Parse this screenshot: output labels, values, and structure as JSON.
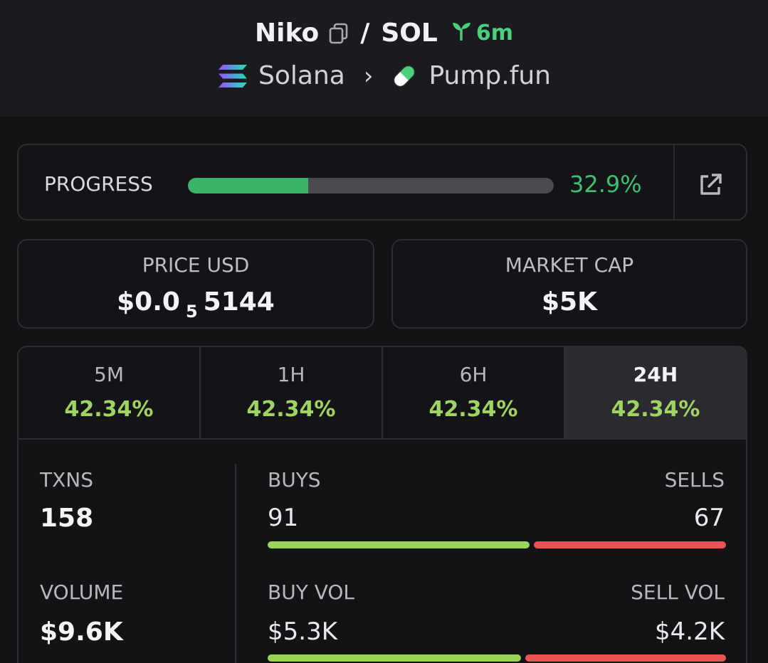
{
  "header": {
    "token_name": "Niko",
    "separator": "/",
    "quote": "SOL",
    "age": "6m",
    "chain": "Solana",
    "chevron": "›",
    "launchpad": "Pump.fun"
  },
  "progress": {
    "label": "PROGRESS",
    "value_text": "32.9%",
    "value": 0.329
  },
  "price": {
    "label": "PRICE USD",
    "prefix": "$0.0",
    "zeros": "5",
    "suffix": "5144"
  },
  "market_cap": {
    "label": "MARKET CAP",
    "value": "$5K"
  },
  "periods": [
    {
      "label": "5M",
      "value": "42.34%",
      "active": false
    },
    {
      "label": "1H",
      "value": "42.34%",
      "active": false
    },
    {
      "label": "6H",
      "value": "42.34%",
      "active": false
    },
    {
      "label": "24H",
      "value": "42.34%",
      "active": true
    }
  ],
  "txns": {
    "label": "TXNS",
    "value": "158",
    "buys_label": "BUYS",
    "buys": "91",
    "sells_label": "SELLS",
    "sells": "67"
  },
  "volume": {
    "label": "VOLUME",
    "value": "$9.6K",
    "buy_label": "BUY VOL",
    "buy": "$5.3K",
    "sell_label": "SELL VOL",
    "sell": "$4.2K"
  },
  "colors": {
    "accent_green": "#3fbf72",
    "change_green": "#9fd460",
    "sell_red": "#ea5455"
  }
}
